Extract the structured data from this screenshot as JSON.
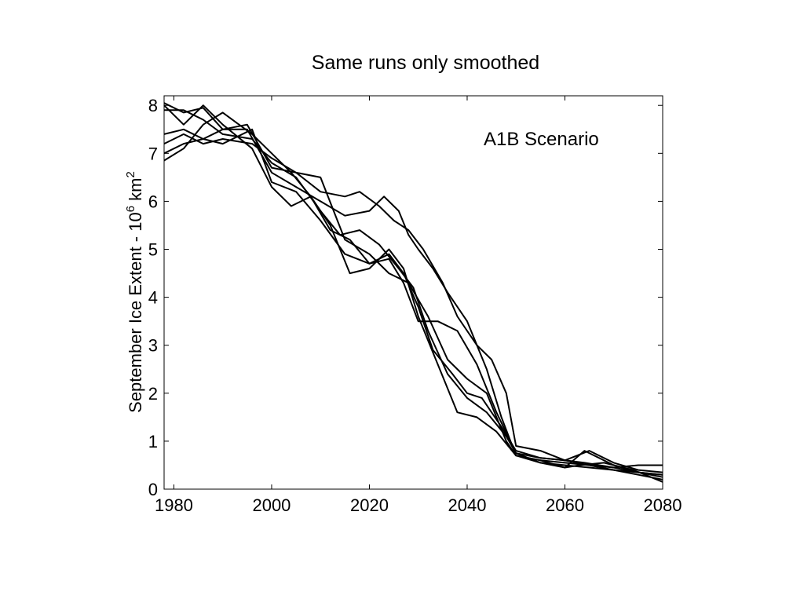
{
  "chart_data": {
    "type": "line",
    "title": "Same runs only smoothed",
    "xlabel": "",
    "ylabel": "September Ice Extent - 10",
    "ylabel_exp": "6",
    "ylabel_unit": " km",
    "ylabel_unit_exp": "2",
    "annotation": "A1B Scenario",
    "xlim": [
      1978,
      2080
    ],
    "ylim": [
      0,
      8.2
    ],
    "xticks": [
      1980,
      2000,
      2020,
      2040,
      2060,
      2080
    ],
    "yticks": [
      0,
      1,
      2,
      3,
      4,
      5,
      6,
      7,
      8
    ],
    "grid": false,
    "line_color": "#000000",
    "series": [
      {
        "x": [
          1978,
          1982,
          1986,
          1990,
          1995,
          2000,
          2005,
          2010,
          2015,
          2020,
          2023,
          2026,
          2028,
          2030,
          2033,
          2036,
          2040,
          2044,
          2047,
          2050,
          2055,
          2060,
          2065,
          2070,
          2075,
          2080
        ],
        "values": [
          8.05,
          7.85,
          7.95,
          7.5,
          7.5,
          6.6,
          6.3,
          6.0,
          5.7,
          5.8,
          6.1,
          5.8,
          5.3,
          5.0,
          4.6,
          4.1,
          3.5,
          2.5,
          1.5,
          0.7,
          0.55,
          0.5,
          0.45,
          0.4,
          0.35,
          0.3
        ]
      },
      {
        "x": [
          1978,
          1982,
          1986,
          1990,
          1995,
          2000,
          2005,
          2010,
          2015,
          2018,
          2022,
          2025,
          2028,
          2031,
          2035,
          2038,
          2042,
          2045,
          2048,
          2050,
          2055,
          2060,
          2064,
          2070,
          2075,
          2080
        ],
        "values": [
          7.0,
          7.2,
          7.3,
          7.5,
          7.6,
          6.7,
          6.6,
          6.2,
          6.1,
          6.2,
          5.9,
          5.6,
          5.4,
          5.0,
          4.3,
          3.6,
          3.0,
          2.7,
          2.0,
          0.9,
          0.8,
          0.6,
          0.55,
          0.45,
          0.5,
          0.5
        ]
      },
      {
        "x": [
          1978,
          1982,
          1986,
          1990,
          1996,
          2000,
          2004,
          2008,
          2012,
          2016,
          2020,
          2024,
          2027,
          2030,
          2034,
          2038,
          2042,
          2046,
          2050,
          2055,
          2060,
          2065,
          2070,
          2075,
          2080
        ],
        "values": [
          6.85,
          7.1,
          7.6,
          7.85,
          7.4,
          7.0,
          6.6,
          6.1,
          5.5,
          4.5,
          4.6,
          5.0,
          4.6,
          3.6,
          2.6,
          1.6,
          1.5,
          1.2,
          0.7,
          0.6,
          0.55,
          0.5,
          0.4,
          0.3,
          0.2
        ]
      },
      {
        "x": [
          1978,
          1982,
          1986,
          1990,
          1996,
          2000,
          2005,
          2010,
          2015,
          2020,
          2024,
          2027,
          2030,
          2033,
          2037,
          2040,
          2043,
          2047,
          2050,
          2055,
          2060,
          2065,
          2070,
          2075,
          2080
        ],
        "values": [
          7.4,
          7.5,
          7.3,
          7.2,
          7.5,
          6.4,
          6.2,
          5.6,
          4.9,
          4.7,
          4.9,
          4.5,
          3.8,
          2.9,
          2.4,
          2.0,
          1.9,
          1.3,
          0.8,
          0.65,
          0.6,
          0.8,
          0.55,
          0.4,
          0.35
        ]
      },
      {
        "x": [
          1978,
          1982,
          1986,
          1990,
          1996,
          2000,
          2005,
          2010,
          2014,
          2018,
          2022,
          2026,
          2029,
          2032,
          2036,
          2040,
          2044,
          2048,
          2050,
          2055,
          2060,
          2065,
          2070,
          2075,
          2080
        ],
        "values": [
          7.9,
          7.9,
          7.7,
          7.4,
          7.3,
          6.8,
          6.5,
          5.8,
          5.3,
          5.4,
          5.1,
          4.6,
          4.2,
          3.3,
          2.4,
          1.9,
          1.6,
          1.1,
          0.75,
          0.65,
          0.6,
          0.5,
          0.45,
          0.35,
          0.25
        ]
      },
      {
        "x": [
          1978,
          1982,
          1986,
          1990,
          1996,
          2000,
          2005,
          2010,
          2015,
          2020,
          2024,
          2028,
          2032,
          2036,
          2040,
          2044,
          2048,
          2050,
          2055,
          2060,
          2064,
          2070,
          2075,
          2080
        ],
        "values": [
          7.2,
          7.4,
          7.2,
          7.3,
          7.2,
          6.9,
          6.6,
          6.5,
          5.2,
          4.9,
          4.5,
          4.3,
          3.6,
          2.7,
          2.3,
          2.0,
          1.0,
          0.7,
          0.6,
          0.45,
          0.8,
          0.5,
          0.35,
          0.3
        ]
      },
      {
        "x": [
          1978,
          1982,
          1986,
          1990,
          1996,
          2000,
          2004,
          2008,
          2012,
          2016,
          2020,
          2024,
          2027,
          2030,
          2034,
          2038,
          2042,
          2046,
          2050,
          2055,
          2060,
          2063,
          2068,
          2074,
          2080
        ],
        "values": [
          8.0,
          7.6,
          8.0,
          7.6,
          7.1,
          6.3,
          5.9,
          6.1,
          5.4,
          5.2,
          4.7,
          4.8,
          4.3,
          3.5,
          3.5,
          3.3,
          2.6,
          1.6,
          0.75,
          0.55,
          0.45,
          0.5,
          0.55,
          0.4,
          0.15
        ]
      }
    ]
  }
}
